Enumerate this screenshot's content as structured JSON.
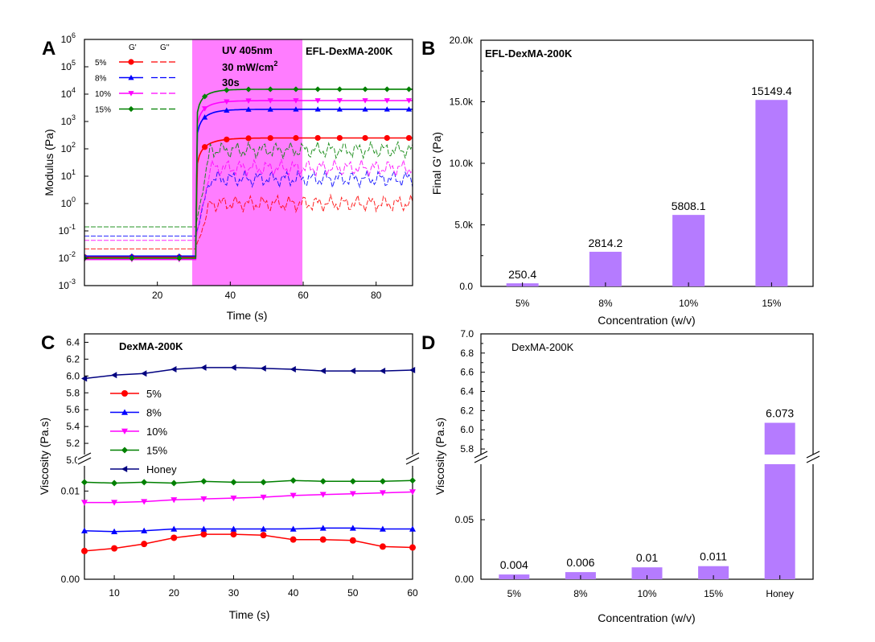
{
  "chart_data": [
    {
      "panel": "A",
      "type": "line",
      "title": "EFL-DexMA-200K",
      "xlabel": "Time (s)",
      "ylabel": "Modulus (Pa)",
      "yscale": "log",
      "xlim": [
        0,
        90
      ],
      "ylim": [
        0.001,
        1000000
      ],
      "x_ticks": [
        "20",
        "40",
        "60",
        "80"
      ],
      "y_ticks": [
        {
          "base": "10",
          "exp": "-3"
        },
        {
          "base": "10",
          "exp": "-2"
        },
        {
          "base": "10",
          "exp": "-1"
        },
        {
          "base": "10",
          "exp": "0"
        },
        {
          "base": "10",
          "exp": "1"
        },
        {
          "base": "10",
          "exp": "2"
        },
        {
          "base": "10",
          "exp": "3"
        },
        {
          "base": "10",
          "exp": "4"
        },
        {
          "base": "10",
          "exp": "5"
        },
        {
          "base": "10",
          "exp": "6"
        }
      ],
      "uv_window": [
        30,
        60
      ],
      "uv_label": {
        "line1": "UV 405nm",
        "line2": "30 mW/cm",
        "sup": "2",
        "line3": "30s"
      },
      "legend_headers": {
        "g1": "G'",
        "g2": "G''"
      },
      "series": [
        {
          "name": "5%",
          "color": "#ff0000",
          "marker": "circle",
          "g_prime": {
            "baseline": 0.011,
            "plateau": 250,
            "rise": 4
          },
          "g_double": {
            "baseline": 0.022,
            "level": 1.0
          }
        },
        {
          "name": "8%",
          "color": "#0000ff",
          "marker": "triangle-up",
          "g_prime": {
            "baseline": 0.012,
            "plateau": 2800,
            "rise": 3.5
          },
          "g_double": {
            "baseline": 0.065,
            "level": 8
          }
        },
        {
          "name": "10%",
          "color": "#ff00ff",
          "marker": "triangle-down",
          "g_prime": {
            "baseline": 0.009,
            "plateau": 5800,
            "rise": 3.5
          },
          "g_double": {
            "baseline": 0.045,
            "level": 20
          }
        },
        {
          "name": "15%",
          "color": "#008000",
          "marker": "diamond",
          "g_prime": {
            "baseline": 0.01,
            "plateau": 15100,
            "rise": 3.2
          },
          "g_double": {
            "baseline": 0.14,
            "level": 90
          }
        }
      ]
    },
    {
      "panel": "B",
      "type": "bar",
      "title": "EFL-DexMA-200K",
      "xlabel": "Concentration (w/v)",
      "ylabel": "Final G' (Pa)",
      "categories": [
        "5%",
        "8%",
        "10%",
        "15%"
      ],
      "values": [
        250.4,
        2814.2,
        5808.1,
        15149.4
      ],
      "value_labels": [
        "250.4",
        "2814.2",
        "5808.1",
        "15149.4"
      ],
      "ylim": [
        0,
        20000
      ],
      "y_ticks": [
        0,
        5000,
        10000,
        15000,
        20000
      ],
      "y_tick_labels": [
        "0.0",
        "5.0k",
        "10.0k",
        "15.0k",
        "20.0k"
      ],
      "bar_color": "#b57bff"
    },
    {
      "panel": "C",
      "type": "line",
      "title": "DexMA-200K",
      "xlabel": "Time (s)",
      "ylabel": "Viscosity (Pa.s)",
      "axis_break": true,
      "xlim": [
        5,
        60
      ],
      "x_ticks": [
        10,
        20,
        30,
        40,
        50,
        60
      ],
      "upper_ylim": [
        5.0,
        6.5
      ],
      "upper_ticks": [
        "5.0",
        "5.2",
        "5.4",
        "5.6",
        "5.8",
        "6.0",
        "6.2",
        "6.4"
      ],
      "lower_ylim": [
        0,
        0.0135
      ],
      "lower_ticks": [
        "0.00",
        "0.01"
      ],
      "x": [
        5,
        10,
        15,
        20,
        25,
        30,
        35,
        40,
        45,
        50,
        55,
        60
      ],
      "series": [
        {
          "name": "5%",
          "color": "#ff0000",
          "marker": "circle",
          "values": [
            0.0032,
            0.0035,
            0.004,
            0.0047,
            0.0051,
            0.0051,
            0.005,
            0.0045,
            0.0045,
            0.0044,
            0.0037,
            0.0036
          ]
        },
        {
          "name": "8%",
          "color": "#0000ff",
          "marker": "triangle-up",
          "values": [
            0.0055,
            0.0054,
            0.0055,
            0.0057,
            0.0057,
            0.0057,
            0.0057,
            0.0057,
            0.0058,
            0.0058,
            0.0057,
            0.0057
          ]
        },
        {
          "name": "10%",
          "color": "#ff00ff",
          "marker": "triangle-down",
          "values": [
            0.0087,
            0.0087,
            0.0088,
            0.009,
            0.0091,
            0.0092,
            0.0093,
            0.0095,
            0.0096,
            0.0097,
            0.0098,
            0.0099
          ]
        },
        {
          "name": "15%",
          "color": "#008000",
          "marker": "diamond",
          "values": [
            0.011,
            0.0109,
            0.011,
            0.0109,
            0.0111,
            0.011,
            0.011,
            0.0112,
            0.0111,
            0.0111,
            0.0111,
            0.0112
          ]
        },
        {
          "name": "Honey",
          "color": "#000080",
          "marker": "triangle-left",
          "values": [
            5.97,
            6.01,
            6.03,
            6.08,
            6.1,
            6.1,
            6.09,
            6.08,
            6.06,
            6.06,
            6.06,
            6.07
          ]
        }
      ]
    },
    {
      "panel": "D",
      "type": "bar",
      "title": "DexMA-200K",
      "xlabel": "Concentration (w/v)",
      "ylabel": "Viscosity (Pa.s)",
      "axis_break": true,
      "categories": [
        "5%",
        "8%",
        "10%",
        "15%",
        "Honey"
      ],
      "values": [
        0.004,
        0.006,
        0.01,
        0.011,
        6.073
      ],
      "value_labels": [
        "0.004",
        "0.006",
        "0.01",
        "0.011",
        "6.073"
      ],
      "upper_ylim": [
        5.7,
        7.0
      ],
      "upper_ticks": [
        "5.8",
        "6.0",
        "6.2",
        "6.4",
        "6.6",
        "6.8",
        "7.0"
      ],
      "lower_ylim": [
        0,
        0.1
      ],
      "lower_ticks": [
        "0.00",
        "0.05"
      ],
      "bar_color": "#b57bff"
    }
  ]
}
